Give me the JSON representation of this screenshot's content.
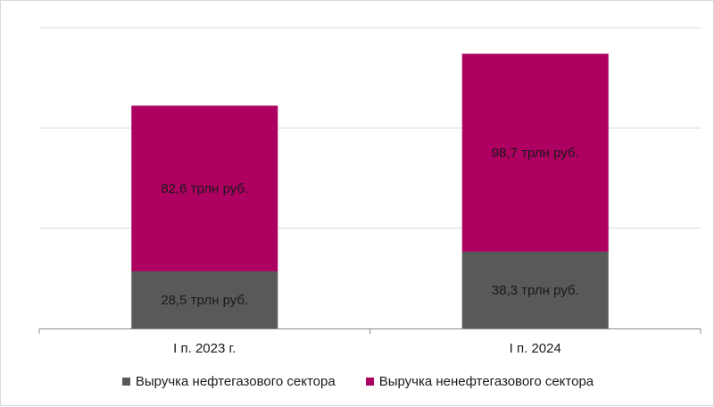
{
  "chart_data": {
    "type": "bar",
    "stacked": true,
    "categories": [
      "I п. 2023 г.",
      "I п. 2024"
    ],
    "series": [
      {
        "name": "Выручка нефтегазового сектора",
        "values": [
          28.5,
          38.3
        ],
        "labels": [
          "28,5 трлн руб.",
          "38,3 трлн руб."
        ],
        "color": "#595959"
      },
      {
        "name": "Выручка ненефтегазового сектора",
        "values": [
          82.6,
          98.7
        ],
        "labels": [
          "82,6 трлн руб.",
          "98,7 трлн руб."
        ],
        "color": "#ad0061"
      }
    ],
    "ylim": [
      0,
      150
    ],
    "grid": true,
    "legend_position": "bottom"
  }
}
